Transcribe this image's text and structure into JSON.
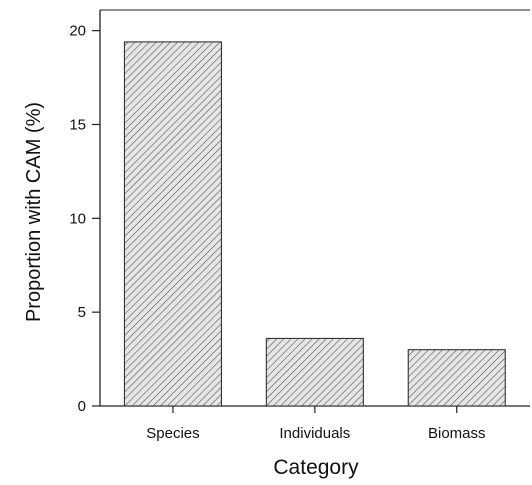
{
  "chart_data": {
    "type": "bar",
    "title": "",
    "xlabel": "Category",
    "ylabel": "Proportion with CAM (%)",
    "categories": [
      "Species",
      "Individuals",
      "Biomass"
    ],
    "values": [
      19.4,
      3.6,
      3.0
    ],
    "ylim": [
      0,
      21.1
    ],
    "yticks": [
      0,
      5,
      10,
      15,
      20
    ],
    "grid": false,
    "bar_fill": "hatched",
    "colors": {
      "bar_stroke": "#333333",
      "hatch": "#555555",
      "axis": "#222222"
    }
  }
}
